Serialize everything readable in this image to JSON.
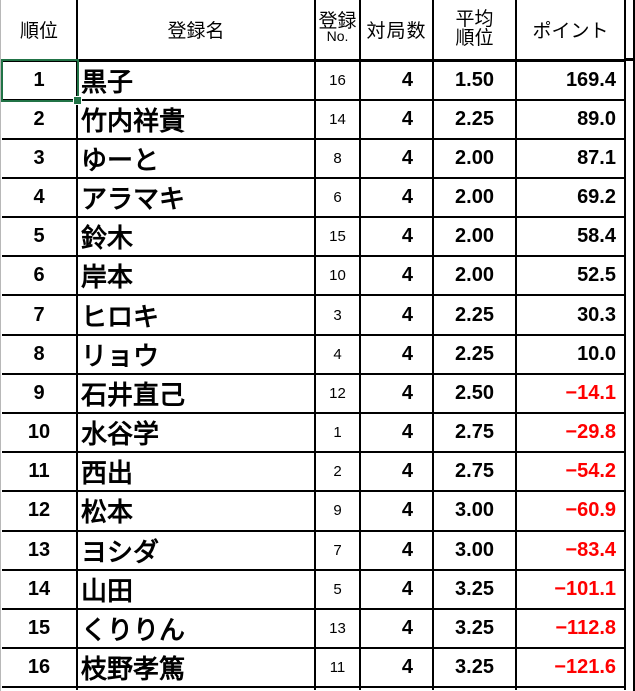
{
  "header": {
    "rank": "順位",
    "name": "登録名",
    "reg_no_line1": "登録",
    "reg_no_line2": "No.",
    "games": "対局数",
    "avg_line1": "平均",
    "avg_line2": "順位",
    "points": "ポイント"
  },
  "rows": [
    {
      "rank": "1",
      "name": "黒子",
      "reg_no": "16",
      "games": "4",
      "avg_rank": "1.50",
      "points": "169.4"
    },
    {
      "rank": "2",
      "name": "竹内祥貴",
      "reg_no": "14",
      "games": "4",
      "avg_rank": "2.25",
      "points": "89.0"
    },
    {
      "rank": "3",
      "name": "ゆーと",
      "reg_no": "8",
      "games": "4",
      "avg_rank": "2.00",
      "points": "87.1"
    },
    {
      "rank": "4",
      "name": "アラマキ",
      "reg_no": "6",
      "games": "4",
      "avg_rank": "2.00",
      "points": "69.2"
    },
    {
      "rank": "5",
      "name": "鈴木",
      "reg_no": "15",
      "games": "4",
      "avg_rank": "2.00",
      "points": "58.4"
    },
    {
      "rank": "6",
      "name": "岸本",
      "reg_no": "10",
      "games": "4",
      "avg_rank": "2.00",
      "points": "52.5"
    },
    {
      "rank": "7",
      "name": "ヒロキ",
      "reg_no": "3",
      "games": "4",
      "avg_rank": "2.25",
      "points": "30.3"
    },
    {
      "rank": "8",
      "name": "リョウ",
      "reg_no": "4",
      "games": "4",
      "avg_rank": "2.25",
      "points": "10.0"
    },
    {
      "rank": "9",
      "name": "石井直己",
      "reg_no": "12",
      "games": "4",
      "avg_rank": "2.50",
      "points": "−14.1"
    },
    {
      "rank": "10",
      "name": "水谷学",
      "reg_no": "1",
      "games": "4",
      "avg_rank": "2.75",
      "points": "−29.8"
    },
    {
      "rank": "11",
      "name": "西出",
      "reg_no": "2",
      "games": "4",
      "avg_rank": "2.75",
      "points": "−54.2"
    },
    {
      "rank": "12",
      "name": "松本",
      "reg_no": "9",
      "games": "4",
      "avg_rank": "3.00",
      "points": "−60.9"
    },
    {
      "rank": "13",
      "name": "ヨシダ",
      "reg_no": "7",
      "games": "4",
      "avg_rank": "3.00",
      "points": "−83.4"
    },
    {
      "rank": "14",
      "name": "山田",
      "reg_no": "5",
      "games": "4",
      "avg_rank": "3.25",
      "points": "−101.1"
    },
    {
      "rank": "15",
      "name": "くりりん",
      "reg_no": "13",
      "games": "4",
      "avg_rank": "3.25",
      "points": "−112.8"
    },
    {
      "rank": "16",
      "name": "枝野孝篤",
      "reg_no": "11",
      "games": "4",
      "avg_rank": "3.25",
      "points": "−121.6"
    }
  ],
  "selection": {
    "row_rank": "1",
    "column": "rank"
  },
  "colors": {
    "negative_text": "#ff0000",
    "positive_text": "#000000",
    "grid_border": "#000000",
    "selection_border": "#217346",
    "sheet_gridline": "#b8b8b8",
    "background": "#ffffff"
  }
}
